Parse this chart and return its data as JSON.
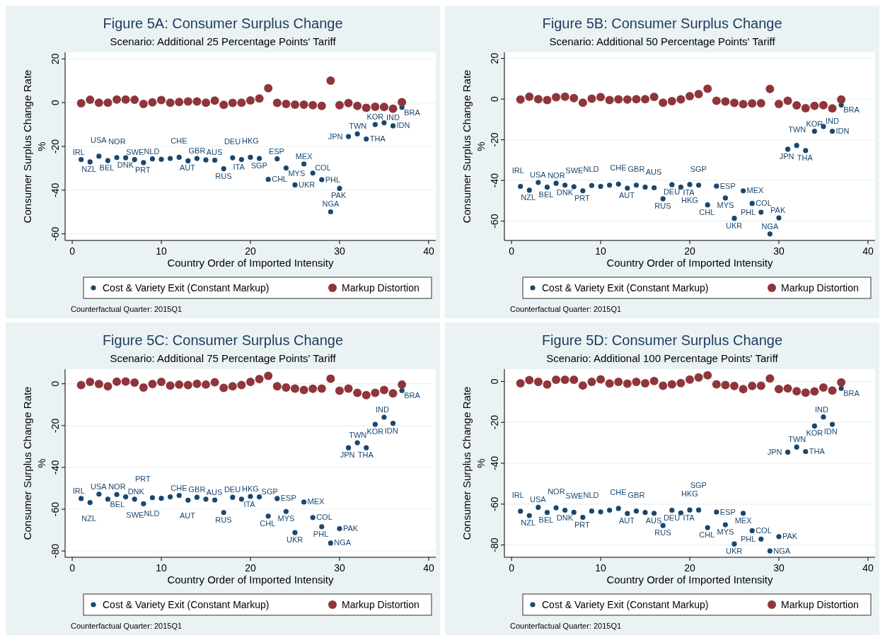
{
  "chart_data": [
    {
      "type": "scatter",
      "title": "Figure 5A: Consumer Surplus Change",
      "subtitle": "Scenario: Additional 25 Percentage Points' Tariff",
      "xlabel": "Country Order of Imported Intensity",
      "ylabel": "Consumer Surplus Change Rate\n%",
      "xlim": [
        -0.8,
        40.8
      ],
      "xticks": [
        0,
        10,
        20,
        30,
        40
      ],
      "ylim": [
        -63,
        23
      ],
      "yticks": [
        -60,
        -40,
        -20,
        0,
        20
      ],
      "grid": "y",
      "legend": "bottom",
      "marker": "circle",
      "x": [
        1,
        2,
        3,
        4,
        5,
        6,
        7,
        8,
        9,
        10,
        11,
        12,
        13,
        14,
        15,
        16,
        17,
        18,
        19,
        20,
        21,
        22,
        23,
        24,
        25,
        26,
        27,
        28,
        29,
        30,
        31,
        32,
        33,
        34,
        35,
        36,
        37
      ],
      "series": [
        {
          "name": "Cost & Variety Exit (Constant Markup)",
          "color": "#1a476f",
          "values": [
            -26,
            -27.1,
            -24.5,
            -26.5,
            -25.1,
            -25.2,
            -26,
            -27.4,
            -25.7,
            -25.9,
            -25.5,
            -25,
            -26.6,
            -25.5,
            -26.2,
            -26.3,
            -30.2,
            -25.2,
            -26,
            -25,
            -25.5,
            -35.1,
            -25.7,
            -29.9,
            -37.6,
            -28,
            -32.2,
            -35.2,
            -49.9,
            -39.2,
            -15.5,
            -14.3,
            -16.6,
            -10,
            -9.2,
            -10.6,
            -2.1
          ]
        },
        {
          "name": "Markup Distortion",
          "color": "#90353b",
          "values": [
            -0.3,
            1.3,
            0,
            0,
            1.4,
            1.4,
            1.3,
            -0.6,
            0.1,
            1.2,
            0,
            0.3,
            0.5,
            0.5,
            0,
            0.9,
            -1,
            -0.1,
            0,
            1,
            1.9,
            6.6,
            -0.1,
            -0.6,
            -0.9,
            -0.9,
            -1.2,
            -1.5,
            10.1,
            -1.2,
            -0.2,
            -1.5,
            -2.4,
            -1.9,
            -2,
            -2.8,
            0.2
          ]
        }
      ],
      "annotations": [
        "Counterfactual Quarter: 2015Q1",
        {
          "text": "IRL",
          "x": 1,
          "y": -26
        },
        {
          "text": "NZL",
          "x": 2,
          "y": -27.1
        },
        {
          "text": "USA",
          "x": 3,
          "y": -24.5
        },
        {
          "text": "BEL",
          "x": 4,
          "y": -26.5
        },
        {
          "text": "NOR",
          "x": 5,
          "y": -25.1
        },
        {
          "text": "DNK",
          "x": 6,
          "y": -25.2
        },
        {
          "text": "SWE",
          "x": 7,
          "y": -26
        },
        {
          "text": "PRT",
          "x": 8,
          "y": -27.4
        },
        {
          "text": "NLD",
          "x": 9,
          "y": -25.7
        },
        {
          "text": "CHE",
          "x": 12,
          "y": -25
        },
        {
          "text": "AUT",
          "x": 13,
          "y": -26.6
        },
        {
          "text": "GBR",
          "x": 14,
          "y": -25.5
        },
        {
          "text": "AUS",
          "x": 16,
          "y": -26.3
        },
        {
          "text": "RUS",
          "x": 17,
          "y": -30.2
        },
        {
          "text": "DEU",
          "x": 18,
          "y": -25.2
        },
        {
          "text": "ITA",
          "x": 19,
          "y": -26
        },
        {
          "text": "HKG",
          "x": 20,
          "y": -25
        },
        {
          "text": "SGP",
          "x": 21,
          "y": -25.5
        },
        {
          "text": "CHL",
          "x": 22,
          "y": -35.1
        },
        {
          "text": "ESP",
          "x": 23,
          "y": -25.7
        },
        {
          "text": "MYS",
          "x": 24,
          "y": -29.9
        },
        {
          "text": "UKR",
          "x": 25,
          "y": -37.6
        },
        {
          "text": "MEX",
          "x": 26,
          "y": -28
        },
        {
          "text": "COL",
          "x": 27,
          "y": -32.2
        },
        {
          "text": "PHL",
          "x": 28,
          "y": -35.2
        },
        {
          "text": "NGA",
          "x": 29,
          "y": -49.9
        },
        {
          "text": "PAK",
          "x": 30,
          "y": -39.2
        },
        {
          "text": "JPN",
          "x": 31,
          "y": -15.5
        },
        {
          "text": "TWN",
          "x": 32,
          "y": -14.3
        },
        {
          "text": "THA",
          "x": 33,
          "y": -16.6
        },
        {
          "text": "KOR",
          "x": 34,
          "y": -10
        },
        {
          "text": "IND",
          "x": 35,
          "y": -9.2
        },
        {
          "text": "IDN",
          "x": 36,
          "y": -10.6
        },
        {
          "text": "BRA",
          "x": 37,
          "y": -2.1
        }
      ]
    },
    {
      "type": "scatter",
      "title": "Figure 5B: Consumer Surplus Change",
      "subtitle": "Scenario: Additional 50 Percentage Points' Tariff",
      "xlabel": "Country Order of Imported Intensity",
      "ylabel": "Consumer Surplus Change Rate\n%",
      "xlim": [
        -0.8,
        40.8
      ],
      "xticks": [
        0,
        10,
        20,
        30,
        40
      ],
      "ylim": [
        -69.5,
        23
      ],
      "yticks": [
        -60,
        -40,
        -20,
        0,
        20
      ],
      "grid": "y",
      "legend": "bottom",
      "marker": "circle",
      "x": [
        1,
        2,
        3,
        4,
        5,
        6,
        7,
        8,
        9,
        10,
        11,
        12,
        13,
        14,
        15,
        16,
        17,
        18,
        19,
        20,
        21,
        22,
        23,
        24,
        25,
        26,
        27,
        28,
        29,
        30,
        31,
        32,
        33,
        34,
        35,
        36,
        37
      ],
      "series": [
        {
          "name": "Cost & Variety Exit (Constant Markup)",
          "color": "#1a476f",
          "values": [
            -42.9,
            -44.8,
            -41,
            -43.3,
            -41.4,
            -42.3,
            -43.1,
            -45.1,
            -42.5,
            -42.9,
            -42.3,
            -41.8,
            -43.8,
            -42.3,
            -43.3,
            -43.6,
            -49,
            -42.1,
            -43.3,
            -42,
            -42.3,
            -52,
            -42.8,
            -48.6,
            -58.6,
            -45.1,
            -51.3,
            -55.6,
            -66.3,
            -58.4,
            -24.6,
            -22.8,
            -25.3,
            -15.8,
            -13.5,
            -15.8,
            -2.9
          ]
        },
        {
          "name": "Markup Distortion",
          "color": "#90353b",
          "values": [
            -0.2,
            1.2,
            0,
            -0.5,
            0.9,
            1.2,
            0.5,
            -1.8,
            0.2,
            1,
            -0.5,
            -0.1,
            -0.2,
            0,
            0,
            1.1,
            -1.8,
            -1,
            -0.1,
            1.4,
            2.5,
            5.1,
            -0.8,
            -1.2,
            -1.9,
            -2.5,
            -2.1,
            -2,
            5,
            -2.4,
            -0.8,
            -3.1,
            -4.5,
            -3.3,
            -3,
            -4.6,
            -0.2
          ]
        }
      ],
      "annotations": [
        "Counterfactual Quarter: 2015Q1",
        {
          "text": "IRL",
          "x": 1,
          "y": -42.9
        },
        {
          "text": "NZL",
          "x": 2,
          "y": -44.8
        },
        {
          "text": "USA",
          "x": 3,
          "y": -41
        },
        {
          "text": "BEL",
          "x": 4,
          "y": -43.3
        },
        {
          "text": "NOR",
          "x": 5,
          "y": -41.4
        },
        {
          "text": "DNK",
          "x": 6,
          "y": -42.3
        },
        {
          "text": "SWE",
          "x": 7,
          "y": -43.1
        },
        {
          "text": "PRT",
          "x": 8,
          "y": -45.1
        },
        {
          "text": "NLD",
          "x": 9,
          "y": -42.5
        },
        {
          "text": "CHE",
          "x": 12,
          "y": -41.8
        },
        {
          "text": "AUT",
          "x": 13,
          "y": -43.8
        },
        {
          "text": "GBR",
          "x": 14,
          "y": -42.3
        },
        {
          "text": "AUS",
          "x": 16,
          "y": -43.6
        },
        {
          "text": "RUS",
          "x": 17,
          "y": -49
        },
        {
          "text": "DEU",
          "x": 18,
          "y": -42.1
        },
        {
          "text": "ITA",
          "x": 19,
          "y": -43.3
        },
        {
          "text": "HKG",
          "x": 20,
          "y": -42
        },
        {
          "text": "SGP",
          "x": 21,
          "y": -42.3
        },
        {
          "text": "CHL",
          "x": 22,
          "y": -52
        },
        {
          "text": "ESP",
          "x": 23,
          "y": -42.8
        },
        {
          "text": "MYS",
          "x": 24,
          "y": -48.6
        },
        {
          "text": "UKR",
          "x": 25,
          "y": -58.6
        },
        {
          "text": "MEX",
          "x": 26,
          "y": -45.1
        },
        {
          "text": "COL",
          "x": 27,
          "y": -51.3
        },
        {
          "text": "PHL",
          "x": 28,
          "y": -55.6
        },
        {
          "text": "NGA",
          "x": 29,
          "y": -66.3
        },
        {
          "text": "PAK",
          "x": 30,
          "y": -58.4
        },
        {
          "text": "JPN",
          "x": 31,
          "y": -24.6
        },
        {
          "text": "TWN",
          "x": 32,
          "y": -22.8
        },
        {
          "text": "THA",
          "x": 33,
          "y": -25.3
        },
        {
          "text": "KOR",
          "x": 34,
          "y": -15.8
        },
        {
          "text": "IND",
          "x": 35,
          "y": -13.5
        },
        {
          "text": "IDN",
          "x": 36,
          "y": -15.8
        },
        {
          "text": "BRA",
          "x": 37,
          "y": -2.9
        }
      ]
    },
    {
      "type": "scatter",
      "title": "Figure 5C: Consumer Surplus Change",
      "subtitle": "Scenario: Additional 75 Percentage Points' Tariff",
      "xlabel": "Country Order of Imported Intensity",
      "ylabel": "Consumer Surplus Change Rate\n%",
      "xlim": [
        -0.8,
        40.8
      ],
      "xticks": [
        0,
        10,
        20,
        30,
        40
      ],
      "ylim": [
        -83,
        7
      ],
      "yticks": [
        -80,
        -60,
        -40,
        -20,
        0
      ],
      "grid": "y",
      "legend": "bottom",
      "marker": "circle",
      "x": [
        1,
        2,
        3,
        4,
        5,
        6,
        7,
        8,
        9,
        10,
        11,
        12,
        13,
        14,
        15,
        16,
        17,
        18,
        19,
        20,
        21,
        22,
        23,
        24,
        25,
        26,
        27,
        28,
        29,
        30,
        31,
        32,
        33,
        34,
        35,
        36,
        37
      ],
      "series": [
        {
          "name": "Cost & Variety Exit (Constant Markup)",
          "color": "#1a476f",
          "values": [
            -54.9,
            -56.8,
            -52.8,
            -55.2,
            -53,
            -54.1,
            -55.2,
            -57.4,
            -54.5,
            -54.8,
            -54.1,
            -53.4,
            -55.7,
            -54.3,
            -55.2,
            -55.6,
            -61.6,
            -54.3,
            -55.2,
            -53.9,
            -54.1,
            -63.3,
            -54.9,
            -61.1,
            -71.2,
            -56.6,
            -64,
            -68.4,
            -76.2,
            -69.3,
            -30.6,
            -28.2,
            -30.6,
            -19.4,
            -16,
            -18.9,
            -3.2
          ]
        },
        {
          "name": "Markup Distortion",
          "color": "#90353b",
          "values": [
            -0.6,
            0.9,
            -0.1,
            -1.2,
            1,
            1.1,
            0.6,
            -1.8,
            -0.1,
            0.9,
            -0.9,
            -0.4,
            -0.6,
            0,
            -0.4,
            0.7,
            -2,
            -1.2,
            -0.6,
            0.9,
            2.3,
            3.8,
            -1.2,
            -1.8,
            -2.3,
            -3,
            -2.4,
            -2.3,
            2.4,
            -3.3,
            -2.3,
            -4.3,
            -5.4,
            -4.3,
            -3,
            -4.6,
            -0.4
          ]
        }
      ],
      "annotations": [
        "Counterfactual Quarter: 2015Q1",
        {
          "text": "IRL",
          "x": 1,
          "y": -54.9
        },
        {
          "text": "NZL",
          "x": 2,
          "y": -56.8
        },
        {
          "text": "USA",
          "x": 3,
          "y": -52.8
        },
        {
          "text": "BEL",
          "x": 4,
          "y": -55.2
        },
        {
          "text": "NOR",
          "x": 5,
          "y": -53
        },
        {
          "text": "DNK",
          "x": 6,
          "y": -54.1
        },
        {
          "text": "SWE",
          "x": 7,
          "y": -55.2
        },
        {
          "text": "PRT",
          "x": 8,
          "y": -57.4
        },
        {
          "text": "NLD",
          "x": 9,
          "y": -54.5
        },
        {
          "text": "CHE",
          "x": 12,
          "y": -53.4
        },
        {
          "text": "AUT",
          "x": 13,
          "y": -55.7
        },
        {
          "text": "GBR",
          "x": 14,
          "y": -54.3
        },
        {
          "text": "AUS",
          "x": 16,
          "y": -55.6
        },
        {
          "text": "RUS",
          "x": 17,
          "y": -61.6
        },
        {
          "text": "DEU",
          "x": 18,
          "y": -54.3
        },
        {
          "text": "ITA",
          "x": 19,
          "y": -55.2
        },
        {
          "text": "HKG",
          "x": 20,
          "y": -53.9
        },
        {
          "text": "SGP",
          "x": 21,
          "y": -54.1
        },
        {
          "text": "CHL",
          "x": 22,
          "y": -63.3
        },
        {
          "text": "ESP",
          "x": 23,
          "y": -54.9
        },
        {
          "text": "MYS",
          "x": 24,
          "y": -61.1
        },
        {
          "text": "UKR",
          "x": 25,
          "y": -71.2
        },
        {
          "text": "MEX",
          "x": 26,
          "y": -56.6
        },
        {
          "text": "COL",
          "x": 27,
          "y": -64
        },
        {
          "text": "PHL",
          "x": 28,
          "y": -68.4
        },
        {
          "text": "NGA",
          "x": 29,
          "y": -76.2
        },
        {
          "text": "PAK",
          "x": 30,
          "y": -69.3
        },
        {
          "text": "JPN",
          "x": 31,
          "y": -30.6
        },
        {
          "text": "TWN",
          "x": 32,
          "y": -28.2
        },
        {
          "text": "THA",
          "x": 33,
          "y": -30.6
        },
        {
          "text": "KOR",
          "x": 34,
          "y": -19.4
        },
        {
          "text": "IND",
          "x": 35,
          "y": -16
        },
        {
          "text": "IDN",
          "x": 36,
          "y": -18.9
        },
        {
          "text": "BRA",
          "x": 37,
          "y": -3.2
        }
      ]
    },
    {
      "type": "scatter",
      "title": "Figure 5D: Consumer Surplus Change",
      "subtitle": "Scenario: Additional 100 Percentage Points' Tariff",
      "xlabel": "Country Order of Imported Intensity",
      "ylabel": "Consumer Surplus Change Rate\n%",
      "xlim": [
        -0.8,
        40.8
      ],
      "xticks": [
        0,
        10,
        20,
        30,
        40
      ],
      "ylim": [
        -86,
        6
      ],
      "yticks": [
        -80,
        -60,
        -40,
        -20,
        0
      ],
      "grid": "y",
      "legend": "bottom",
      "marker": "circle",
      "x": [
        1,
        2,
        3,
        4,
        5,
        6,
        7,
        8,
        9,
        10,
        11,
        12,
        13,
        14,
        15,
        16,
        17,
        18,
        19,
        20,
        21,
        22,
        23,
        24,
        25,
        26,
        27,
        28,
        29,
        30,
        31,
        32,
        33,
        34,
        35,
        36,
        37
      ],
      "series": [
        {
          "name": "Cost & Variety Exit (Constant Markup)",
          "color": "#1a476f",
          "values": [
            -63.5,
            -65.6,
            -61.6,
            -64.1,
            -61.8,
            -63,
            -64,
            -66.5,
            -63.4,
            -63.8,
            -63,
            -62.1,
            -64.6,
            -63.4,
            -64.1,
            -64.5,
            -70.5,
            -63,
            -64.3,
            -62.9,
            -62.9,
            -71.5,
            -63.9,
            -70.1,
            -79.5,
            -64.5,
            -73,
            -77.1,
            -82.9,
            -75.9,
            -34.6,
            -32.1,
            -34.3,
            -21.8,
            -17.4,
            -21,
            -3.4
          ]
        },
        {
          "name": "Markup Distortion",
          "color": "#90353b",
          "values": [
            -0.9,
            0.6,
            -0.2,
            -1.5,
            0.8,
            0.8,
            0.8,
            -2,
            -0.2,
            1,
            -1,
            -0.2,
            -1.1,
            -0.2,
            -0.9,
            0.2,
            -2.1,
            -1.4,
            -0.8,
            0.9,
            1.9,
            3,
            -1.4,
            -1.8,
            -2.2,
            -3.8,
            -2.2,
            -2.1,
            1.4,
            -3.8,
            -3.4,
            -4.8,
            -5.5,
            -4.9,
            -3,
            -4.5,
            -0.5
          ]
        }
      ],
      "annotations": [
        "Counterfactual Quarter: 2015Q1",
        {
          "text": "IRL",
          "x": 1,
          "y": -63.5
        },
        {
          "text": "NZL",
          "x": 2,
          "y": -65.6
        },
        {
          "text": "USA",
          "x": 3,
          "y": -61.6
        },
        {
          "text": "BEL",
          "x": 4,
          "y": -64.1
        },
        {
          "text": "NOR",
          "x": 5,
          "y": -61.8
        },
        {
          "text": "DNK",
          "x": 6,
          "y": -63
        },
        {
          "text": "SWE",
          "x": 7,
          "y": -64
        },
        {
          "text": "PRT",
          "x": 8,
          "y": -66.5
        },
        {
          "text": "NLD",
          "x": 9,
          "y": -63.4
        },
        {
          "text": "CHE",
          "x": 12,
          "y": -62.1
        },
        {
          "text": "AUT",
          "x": 13,
          "y": -64.6
        },
        {
          "text": "GBR",
          "x": 14,
          "y": -63.4
        },
        {
          "text": "AUS",
          "x": 16,
          "y": -64.5
        },
        {
          "text": "RUS",
          "x": 17,
          "y": -70.5
        },
        {
          "text": "DEU",
          "x": 18,
          "y": -63
        },
        {
          "text": "ITA",
          "x": 19,
          "y": -64.3
        },
        {
          "text": "HKG",
          "x": 20,
          "y": -62.9
        },
        {
          "text": "SGP",
          "x": 21,
          "y": -62.9
        },
        {
          "text": "CHL",
          "x": 22,
          "y": -71.5
        },
        {
          "text": "ESP",
          "x": 23,
          "y": -63.9
        },
        {
          "text": "MYS",
          "x": 24,
          "y": -70.1
        },
        {
          "text": "UKR",
          "x": 25,
          "y": -79.5
        },
        {
          "text": "MEX",
          "x": 26,
          "y": -64.5
        },
        {
          "text": "COL",
          "x": 27,
          "y": -73
        },
        {
          "text": "PHL",
          "x": 28,
          "y": -77.1
        },
        {
          "text": "NGA",
          "x": 29,
          "y": -82.9
        },
        {
          "text": "PAK",
          "x": 30,
          "y": -75.9
        },
        {
          "text": "JPN",
          "x": 31,
          "y": -34.6
        },
        {
          "text": "TWN",
          "x": 32,
          "y": -32.1
        },
        {
          "text": "THA",
          "x": 33,
          "y": -34.3
        },
        {
          "text": "KOR",
          "x": 34,
          "y": -21.8
        },
        {
          "text": "IND",
          "x": 35,
          "y": -17.4
        },
        {
          "text": "IDN",
          "x": 36,
          "y": -21
        },
        {
          "text": "BRA",
          "x": 37,
          "y": -3.4
        }
      ]
    }
  ]
}
